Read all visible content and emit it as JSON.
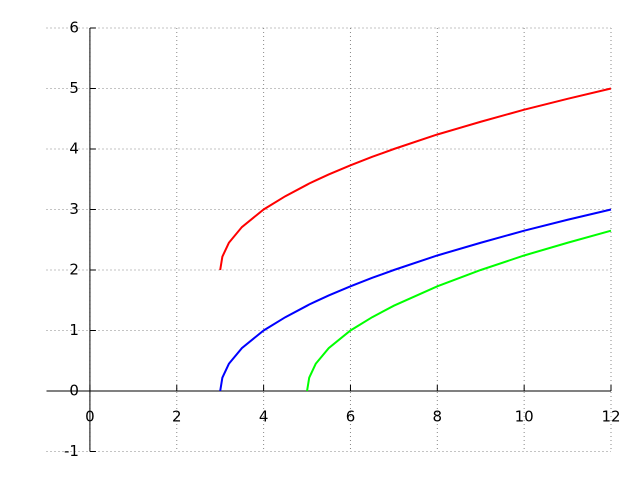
{
  "chart_data": {
    "type": "line",
    "x": [
      3,
      3.05,
      3.2,
      3.5,
      4,
      4.5,
      5,
      5.05,
      5.2,
      5.5,
      6,
      6.5,
      7,
      8,
      9,
      10,
      11,
      12
    ],
    "series": [
      {
        "color": "#ff0000",
        "values": [
          2,
          2.22,
          2.45,
          2.71,
          3,
          3.22,
          3.41,
          3.43,
          3.48,
          3.58,
          3.73,
          3.87,
          4,
          4.24,
          4.45,
          4.65,
          4.83,
          5
        ]
      },
      {
        "color": "#0000ff",
        "values": [
          0,
          0.22,
          0.45,
          0.71,
          1,
          1.22,
          1.41,
          1.43,
          1.48,
          1.58,
          1.73,
          1.87,
          2,
          2.24,
          2.45,
          2.65,
          2.83,
          3
        ]
      },
      {
        "color": "#00ff00",
        "values": [
          null,
          null,
          null,
          null,
          null,
          null,
          0,
          0.22,
          0.45,
          0.71,
          1,
          1.22,
          1.41,
          1.73,
          2,
          2.24,
          2.45,
          2.65
        ]
      }
    ],
    "xlim": [
      -1,
      12
    ],
    "ylim": [
      -1,
      6
    ],
    "xticks": [
      0,
      2,
      4,
      6,
      8,
      10,
      12
    ],
    "yticks": [
      -1,
      0,
      1,
      2,
      3,
      4,
      5,
      6
    ],
    "grid": true
  }
}
